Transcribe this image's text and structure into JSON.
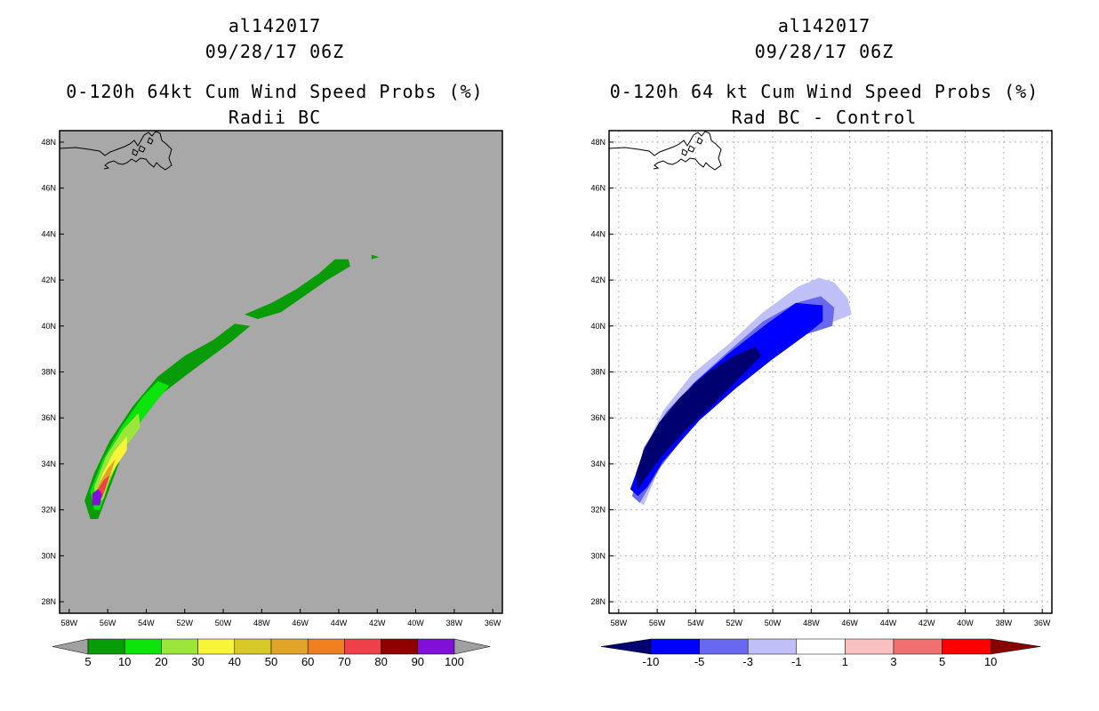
{
  "colors": {
    "left_background": "#a8a8a8",
    "left_scale": [
      "#a0a0a0",
      "#089c08",
      "#0ce40c",
      "#9ce63c",
      "#f8f438",
      "#d8c828",
      "#e0a428",
      "#f07f20",
      "#ee4048",
      "#900000",
      "#8010d8",
      "#a0a0a0"
    ],
    "right_scale": [
      "#000070",
      "#0000ff",
      "#6868f0",
      "#c0c0f8",
      "#ffffff",
      "#f8c0c0",
      "#f07070",
      "#ff0000",
      "#880000"
    ]
  },
  "chart_data": [
    {
      "type": "heatmap",
      "storm_id": "al142017",
      "time": "09/28/17 06Z",
      "title": "0-120h 64kt Cum Wind Speed Probs (%)",
      "subtitle": "Radii BC",
      "xlim": [
        -58.5,
        -35.5
      ],
      "ylim": [
        27.5,
        48.5
      ],
      "grid": false,
      "x_ticks": [
        "58W",
        "56W",
        "54W",
        "52W",
        "50W",
        "48W",
        "46W",
        "44W",
        "42W",
        "40W",
        "38W",
        "36W"
      ],
      "y_ticks": [
        "28N",
        "30N",
        "32N",
        "34N",
        "36N",
        "38N",
        "40N",
        "42N",
        "44N",
        "46N",
        "48N"
      ],
      "colorbar_labels": [
        "5",
        "10",
        "20",
        "30",
        "40",
        "50",
        "60",
        "70",
        "80",
        "90",
        "100"
      ],
      "regions": [
        {
          "level": "5-10",
          "polygon": [
            [
              -56.9,
              31.6
            ],
            [
              -56.5,
              31.6
            ],
            [
              -56.0,
              32.7
            ],
            [
              -55.3,
              34.3
            ],
            [
              -54.3,
              35.9
            ],
            [
              -53.1,
              37.1
            ],
            [
              -51.7,
              38.0
            ],
            [
              -49.6,
              39.3
            ],
            [
              -48.6,
              40.0
            ],
            [
              -49.4,
              40.1
            ],
            [
              -50.5,
              39.4
            ],
            [
              -52.0,
              38.7
            ],
            [
              -53.4,
              37.8
            ],
            [
              -54.7,
              36.5
            ],
            [
              -55.9,
              35.0
            ],
            [
              -56.7,
              33.6
            ],
            [
              -57.2,
              32.4
            ]
          ]
        },
        {
          "level": "5-10",
          "polygon": [
            [
              -48.9,
              40.5
            ],
            [
              -47.5,
              41.0
            ],
            [
              -46.2,
              41.6
            ],
            [
              -45.0,
              42.3
            ],
            [
              -44.2,
              42.9
            ],
            [
              -43.5,
              42.9
            ],
            [
              -43.4,
              42.6
            ],
            [
              -44.6,
              42.0
            ],
            [
              -45.8,
              41.3
            ],
            [
              -47.0,
              40.6
            ],
            [
              -48.2,
              40.3
            ]
          ]
        },
        {
          "level": "5-10",
          "polygon": [
            [
              -42.3,
              43.1
            ],
            [
              -41.9,
              43.0
            ],
            [
              -42.3,
              42.9
            ]
          ]
        },
        {
          "level": "10-20",
          "polygon": [
            [
              -56.7,
              32.0
            ],
            [
              -56.4,
              32.0
            ],
            [
              -56.0,
              33.0
            ],
            [
              -55.3,
              34.4
            ],
            [
              -54.4,
              35.7
            ],
            [
              -53.5,
              36.7
            ],
            [
              -52.8,
              37.4
            ],
            [
              -53.4,
              37.6
            ],
            [
              -54.2,
              36.9
            ],
            [
              -55.3,
              35.6
            ],
            [
              -56.3,
              34.1
            ],
            [
              -56.9,
              32.8
            ]
          ]
        },
        {
          "level": "20-30",
          "polygon": [
            [
              -56.6,
              32.2
            ],
            [
              -56.2,
              32.5
            ],
            [
              -55.9,
              33.3
            ],
            [
              -55.1,
              34.7
            ],
            [
              -54.3,
              35.6
            ],
            [
              -54.4,
              36.2
            ],
            [
              -55.2,
              35.5
            ],
            [
              -56.1,
              34.3
            ],
            [
              -56.7,
              33.0
            ]
          ]
        },
        {
          "level": "30-40",
          "polygon": [
            [
              -56.5,
              32.3
            ],
            [
              -56.2,
              32.7
            ],
            [
              -55.8,
              33.6
            ],
            [
              -55.0,
              34.6
            ],
            [
              -55.0,
              35.2
            ],
            [
              -55.7,
              34.5
            ],
            [
              -56.3,
              33.5
            ],
            [
              -56.6,
              32.7
            ]
          ]
        },
        {
          "level": "50-60",
          "polygon": [
            [
              -56.4,
              32.4
            ],
            [
              -56.1,
              32.9
            ],
            [
              -55.8,
              33.7
            ],
            [
              -55.6,
              34.2
            ],
            [
              -56.0,
              33.8
            ],
            [
              -56.4,
              33.2
            ],
            [
              -56.6,
              32.8
            ]
          ]
        },
        {
          "level": "70-80",
          "polygon": [
            [
              -56.3,
              32.5
            ],
            [
              -56.1,
              33.0
            ],
            [
              -55.9,
              33.5
            ],
            [
              -56.2,
              33.3
            ],
            [
              -56.5,
              32.9
            ]
          ]
        },
        {
          "level": "90-100",
          "polygon": [
            [
              -56.8,
              32.2
            ],
            [
              -56.4,
              32.2
            ],
            [
              -56.3,
              32.7
            ],
            [
              -56.5,
              32.9
            ],
            [
              -56.8,
              32.7
            ]
          ]
        }
      ]
    },
    {
      "type": "heatmap",
      "storm_id": "al142017",
      "time": "09/28/17 06Z",
      "title": "0-120h 64 kt Cum Wind Speed Probs (%)",
      "subtitle": "Rad BC - Control",
      "xlim": [
        -58.5,
        -35.5
      ],
      "ylim": [
        27.5,
        48.5
      ],
      "grid": true,
      "x_ticks": [
        "58W",
        "56W",
        "54W",
        "52W",
        "50W",
        "48W",
        "46W",
        "44W",
        "42W",
        "40W",
        "38W",
        "36W"
      ],
      "y_ticks": [
        "28N",
        "30N",
        "32N",
        "34N",
        "36N",
        "38N",
        "40N",
        "42N",
        "44N",
        "46N",
        "48N"
      ],
      "colorbar_labels": [
        "-10",
        "-5",
        "-3",
        "-1",
        "1",
        "3",
        "5",
        "10"
      ],
      "regions": [
        {
          "level": "-3 to -1",
          "polygon": [
            [
              -57.2,
              32.5
            ],
            [
              -56.7,
              32.2
            ],
            [
              -55.9,
              33.8
            ],
            [
              -54.4,
              35.6
            ],
            [
              -52.7,
              37.3
            ],
            [
              -51.0,
              38.1
            ],
            [
              -49.0,
              39.3
            ],
            [
              -47.4,
              40.0
            ],
            [
              -45.9,
              40.5
            ],
            [
              -46.1,
              41.2
            ],
            [
              -46.8,
              41.9
            ],
            [
              -47.6,
              42.1
            ],
            [
              -48.7,
              41.7
            ],
            [
              -50.5,
              40.6
            ],
            [
              -52.3,
              39.2
            ],
            [
              -54.2,
              37.9
            ],
            [
              -55.7,
              36.3
            ],
            [
              -56.8,
              34.4
            ]
          ]
        },
        {
          "level": "-5 to -3",
          "polygon": [
            [
              -57.3,
              32.6
            ],
            [
              -56.9,
              32.3
            ],
            [
              -55.8,
              33.9
            ],
            [
              -54.0,
              35.8
            ],
            [
              -52.0,
              37.3
            ],
            [
              -50.0,
              38.6
            ],
            [
              -48.4,
              39.6
            ],
            [
              -46.9,
              40.0
            ],
            [
              -46.8,
              40.8
            ],
            [
              -47.5,
              41.3
            ],
            [
              -48.8,
              41.0
            ],
            [
              -50.5,
              40.2
            ],
            [
              -52.3,
              38.9
            ],
            [
              -54.0,
              37.6
            ],
            [
              -55.5,
              36.3
            ],
            [
              -56.7,
              34.7
            ]
          ]
        },
        {
          "level": "-10 to -5",
          "polygon": [
            [
              -57.4,
              32.9
            ],
            [
              -57.0,
              32.6
            ],
            [
              -56.5,
              33.0
            ],
            [
              -55.7,
              34.1
            ],
            [
              -53.8,
              35.9
            ],
            [
              -51.9,
              37.3
            ],
            [
              -50.1,
              38.5
            ],
            [
              -48.3,
              39.6
            ],
            [
              -47.4,
              40.2
            ],
            [
              -47.4,
              40.9
            ],
            [
              -48.8,
              41.0
            ],
            [
              -50.3,
              40.1
            ],
            [
              -52.3,
              38.8
            ],
            [
              -54.1,
              37.5
            ],
            [
              -55.7,
              35.9
            ],
            [
              -56.7,
              34.5
            ]
          ]
        },
        {
          "level": "< -10",
          "polygon": [
            [
              -57.0,
              32.9
            ],
            [
              -56.6,
              33.4
            ],
            [
              -55.8,
              34.3
            ],
            [
              -54.6,
              35.4
            ],
            [
              -53.2,
              36.5
            ],
            [
              -51.9,
              37.6
            ],
            [
              -50.6,
              38.7
            ],
            [
              -50.9,
              39.1
            ],
            [
              -52.0,
              38.7
            ],
            [
              -53.5,
              37.9
            ],
            [
              -54.8,
              36.9
            ],
            [
              -55.9,
              35.8
            ],
            [
              -56.7,
              34.6
            ],
            [
              -57.1,
              33.6
            ]
          ]
        }
      ]
    }
  ]
}
